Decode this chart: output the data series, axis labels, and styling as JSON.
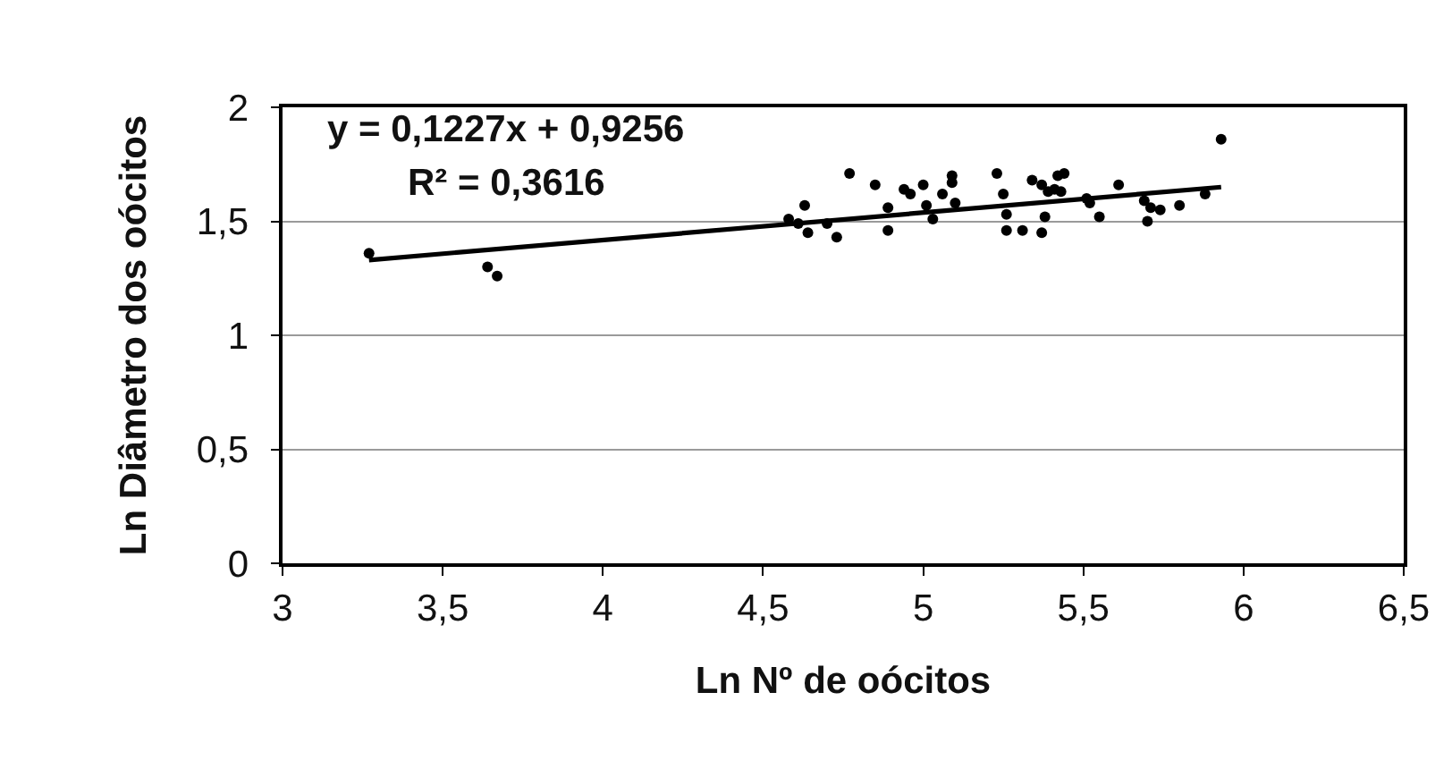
{
  "chart_data": {
    "type": "scatter",
    "xlabel": "Ln Nº de oócitos",
    "ylabel": "Ln Diâmetro dos oócitos",
    "annotations": [
      "y = 0,1227x + 0,9256",
      "R² = 0,3616"
    ],
    "xlim": [
      3,
      6.5
    ],
    "xticks": [
      3,
      {
        "value": 3.5,
        "label": "3,5"
      },
      4,
      {
        "value": 4.5,
        "label": "4,5"
      },
      5,
      {
        "value": 5.5,
        "label": "5,5"
      },
      6,
      {
        "value": 6.5,
        "label": "6,5"
      }
    ],
    "ylim": [
      0,
      2
    ],
    "yticks": [
      0,
      {
        "value": 0.5,
        "label": "0,5"
      },
      1,
      {
        "value": 1.5,
        "label": "1,5"
      },
      2
    ],
    "grid": "y",
    "marker": "circle",
    "series": [
      {
        "color": "#000000",
        "x": [
          3.27,
          3.64,
          3.67,
          4.58,
          4.61,
          4.63,
          4.64,
          4.7,
          4.73,
          4.77,
          4.85,
          4.89,
          4.89,
          4.94,
          4.96,
          5.0,
          5.01,
          5.03,
          5.06,
          5.09,
          5.09,
          5.1,
          5.23,
          5.25,
          5.26,
          5.26,
          5.31,
          5.34,
          5.37,
          5.37,
          5.38,
          5.39,
          5.41,
          5.42,
          5.43,
          5.44,
          5.51,
          5.52,
          5.55,
          5.61,
          5.69,
          5.7,
          5.71,
          5.74,
          5.8,
          5.88,
          5.93
        ],
        "values": [
          1.36,
          1.3,
          1.26,
          1.51,
          1.49,
          1.57,
          1.45,
          1.49,
          1.43,
          1.71,
          1.66,
          1.56,
          1.46,
          1.64,
          1.62,
          1.66,
          1.57,
          1.51,
          1.62,
          1.7,
          1.67,
          1.58,
          1.71,
          1.62,
          1.53,
          1.46,
          1.46,
          1.68,
          1.66,
          1.45,
          1.52,
          1.63,
          1.64,
          1.7,
          1.63,
          1.71,
          1.6,
          1.58,
          1.52,
          1.66,
          1.59,
          1.5,
          1.56,
          1.55,
          1.57,
          1.62,
          1.86
        ]
      },
      {
        "type": "line",
        "color": "#000000",
        "marker": "none",
        "x": [
          3.27,
          5.93
        ],
        "values": [
          1.33,
          1.65
        ]
      }
    ]
  }
}
